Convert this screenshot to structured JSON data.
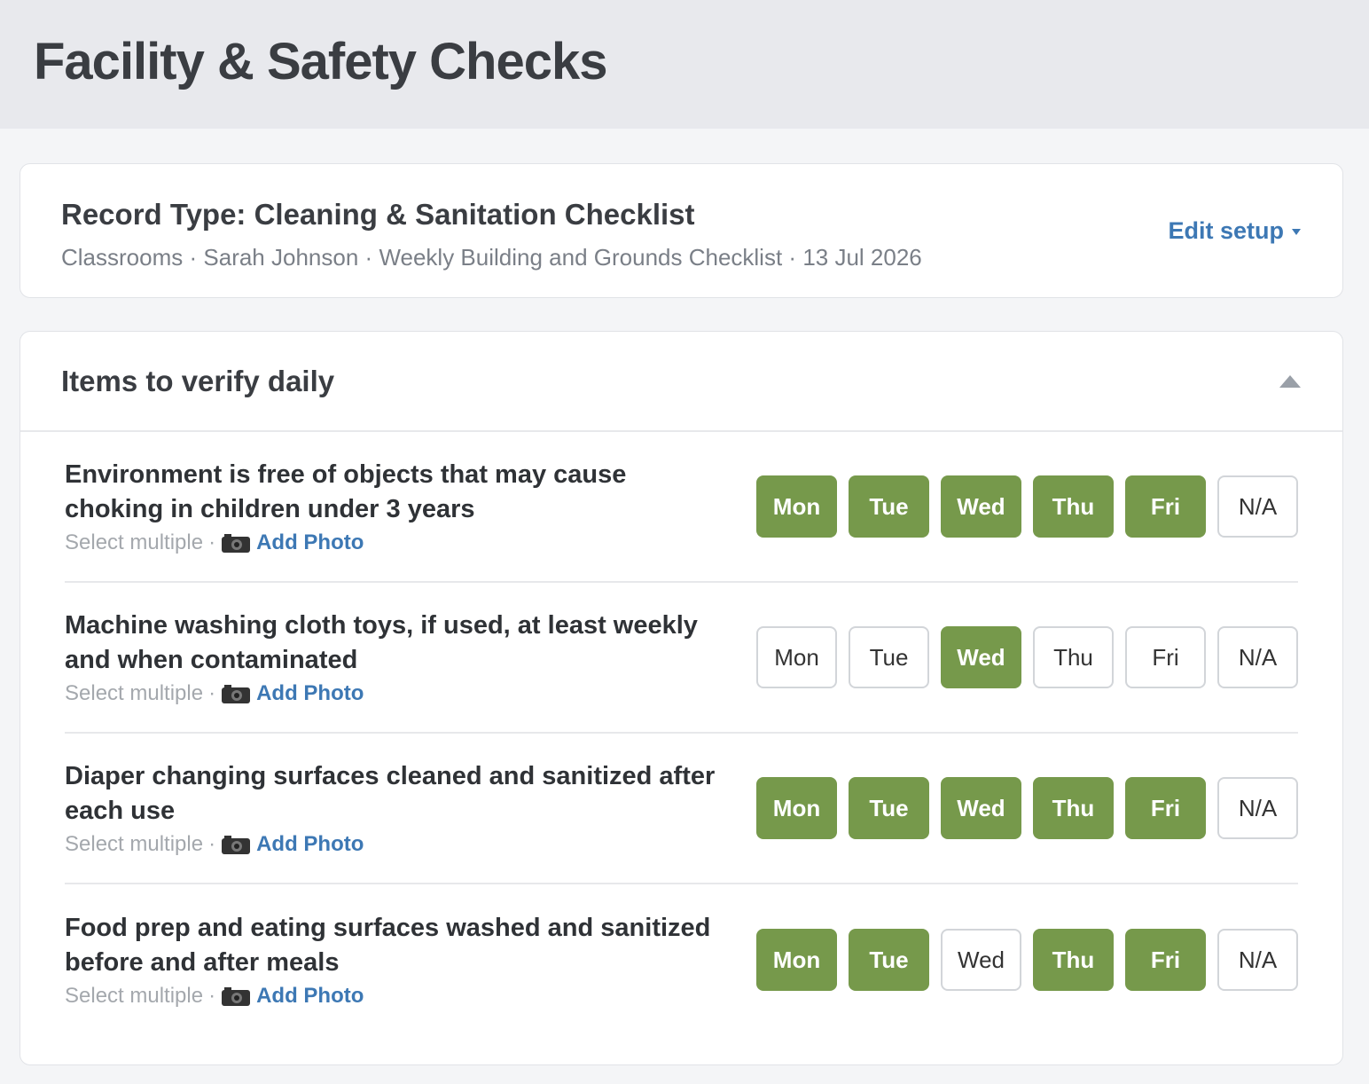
{
  "header": {
    "title": "Facility & Safety Checks"
  },
  "record": {
    "title": "Record Type: Cleaning & Sanitation Checklist",
    "meta": [
      "Classrooms",
      "Sarah Johnson",
      "Weekly Building and Grounds Checklist",
      "13 Jul 2026"
    ],
    "separator": "·",
    "edit": "Edit setup"
  },
  "section": {
    "title": "Items to verify daily",
    "days": [
      "Mon",
      "Tue",
      "Wed",
      "Thu",
      "Fri",
      "N/A"
    ],
    "hint": "Select multiple",
    "photo": "Add Photo",
    "items": [
      {
        "text": "Environment is free of objects that may cause choking in children under 3 years",
        "selected": [
          true,
          true,
          true,
          true,
          true,
          false
        ]
      },
      {
        "text": "Machine washing cloth toys, if used, at least weekly and when contaminated",
        "selected": [
          false,
          false,
          true,
          false,
          false,
          false
        ]
      },
      {
        "text": "Diaper changing surfaces cleaned and sanitized after each use",
        "selected": [
          true,
          true,
          true,
          true,
          true,
          false
        ]
      },
      {
        "text": "Food prep and eating surfaces washed and sanitized before and after meals",
        "selected": [
          true,
          true,
          false,
          true,
          true,
          false
        ]
      }
    ]
  }
}
